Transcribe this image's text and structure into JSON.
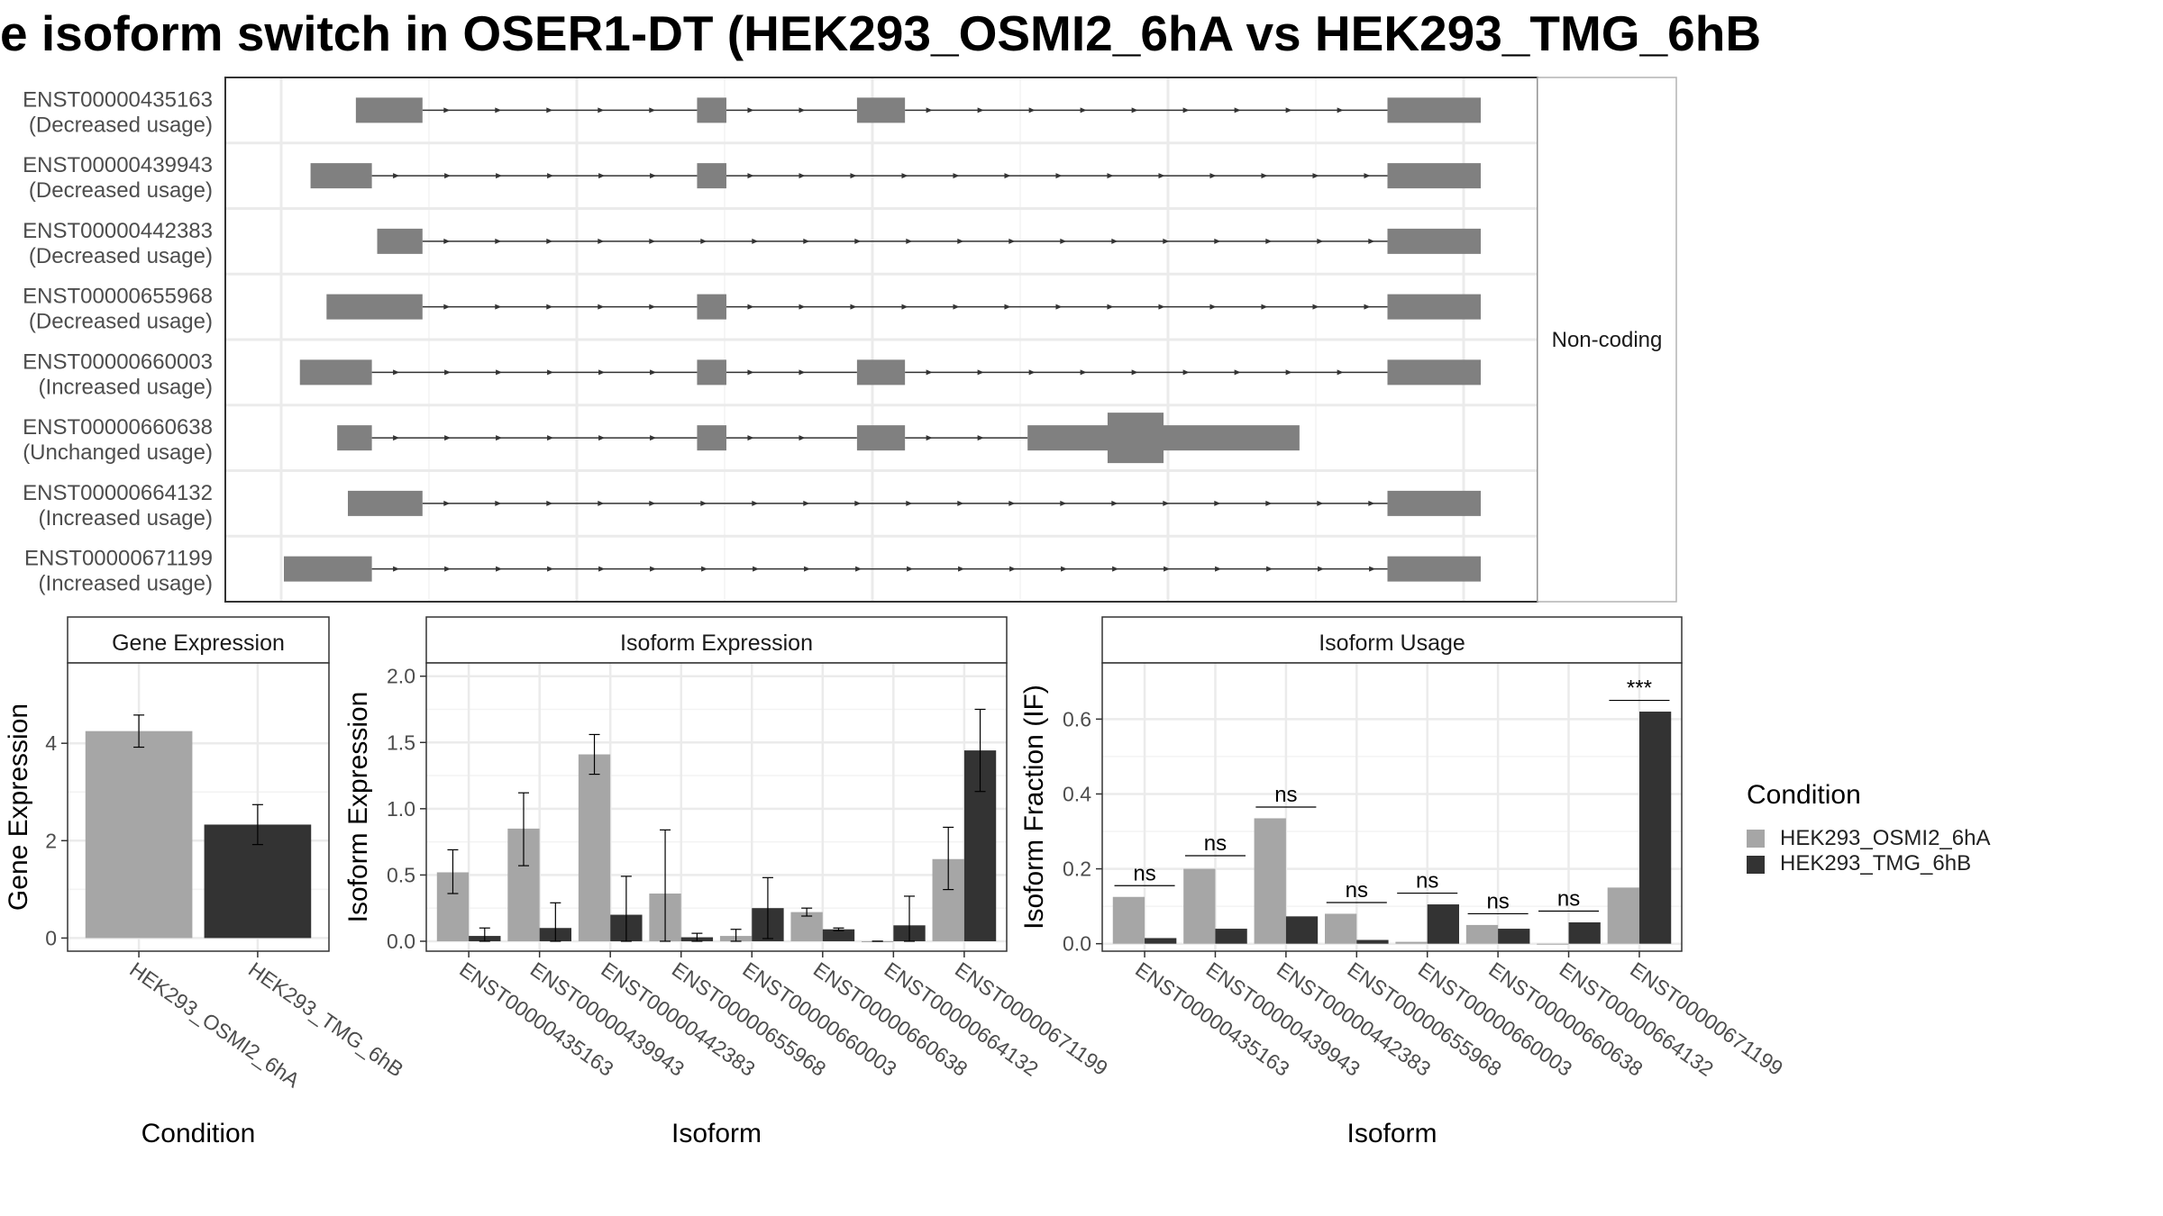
{
  "title": "e isoform switch in OSER1-DT (HEK293_OSMI2_6hA vs HEK293_TMG_6hB",
  "colors": {
    "cond_a": "#a6a6a6",
    "cond_b": "#333333",
    "exon": "#808080",
    "grid": "#ebebeb"
  },
  "structure": {
    "strip_label": "Non-coding",
    "isoforms": [
      {
        "id": "ENST00000435163",
        "usage": "(Decreased usage)",
        "exons": [
          [
            1.97,
            2.22
          ],
          [
            3.25,
            3.36
          ],
          [
            3.85,
            4.03
          ],
          [
            5.84,
            6.19
          ]
        ],
        "cds": []
      },
      {
        "id": "ENST00000439943",
        "usage": "(Decreased usage)",
        "exons": [
          [
            1.8,
            2.03
          ],
          [
            3.25,
            3.36
          ],
          [
            5.84,
            6.19
          ]
        ],
        "cds": []
      },
      {
        "id": "ENST00000442383",
        "usage": "(Decreased usage)",
        "exons": [
          [
            2.05,
            2.22
          ],
          [
            5.84,
            6.19
          ]
        ],
        "cds": []
      },
      {
        "id": "ENST00000655968",
        "usage": "(Decreased usage)",
        "exons": [
          [
            1.86,
            2.22
          ],
          [
            3.25,
            3.36
          ],
          [
            5.84,
            6.19
          ]
        ],
        "cds": []
      },
      {
        "id": "ENST00000660003",
        "usage": "(Increased usage)",
        "exons": [
          [
            1.76,
            2.03
          ],
          [
            3.25,
            3.36
          ],
          [
            3.85,
            4.03
          ],
          [
            5.84,
            6.19
          ]
        ],
        "cds": []
      },
      {
        "id": "ENST00000660638",
        "usage": "(Unchanged usage)",
        "exons": [
          [
            1.9,
            2.03
          ],
          [
            3.25,
            3.36
          ],
          [
            3.85,
            4.03
          ],
          [
            4.49,
            5.51
          ]
        ],
        "cds": [
          [
            4.79,
            5.0
          ]
        ]
      },
      {
        "id": "ENST00000664132",
        "usage": "(Increased usage)",
        "exons": [
          [
            1.94,
            2.22
          ],
          [
            5.84,
            6.19
          ]
        ],
        "cds": []
      },
      {
        "id": "ENST00000671199",
        "usage": "(Increased usage)",
        "exons": [
          [
            1.7,
            2.03
          ],
          [
            5.84,
            6.19
          ]
        ],
        "cds": []
      }
    ]
  },
  "chart_data": [
    {
      "type": "bar",
      "panel": "Gene Expression",
      "categories": [
        "HEK293_OSMI2_6hA",
        "HEK293_TMG_6hB"
      ],
      "values": [
        4.25,
        2.33
      ],
      "errors": [
        [
          3.92,
          4.58
        ],
        [
          1.92,
          2.74
        ]
      ],
      "xlabel": "Condition",
      "ylabel": "Gene Expression",
      "ylim": [
        -0.27,
        5.65
      ],
      "yticks": [
        0,
        2,
        4
      ]
    },
    {
      "type": "bar",
      "panel": "Isoform Expression",
      "categories": [
        "ENST00000435163",
        "ENST00000439943",
        "ENST00000442383",
        "ENST00000655968",
        "ENST00000660003",
        "ENST00000660638",
        "ENST00000664132",
        "ENST00000671199"
      ],
      "series": [
        {
          "name": "HEK293_OSMI2_6hA",
          "values": [
            0.52,
            0.85,
            1.41,
            0.36,
            0.04,
            0.22,
            0.0,
            0.62
          ],
          "errors": [
            [
              0.36,
              0.69
            ],
            [
              0.57,
              1.12
            ],
            [
              1.26,
              1.56
            ],
            [
              0.0,
              0.84
            ],
            [
              0.0,
              0.09
            ],
            [
              0.19,
              0.25
            ],
            [
              0.0,
              0.0
            ],
            [
              0.39,
              0.86
            ]
          ]
        },
        {
          "name": "HEK293_TMG_6hB",
          "values": [
            0.04,
            0.1,
            0.2,
            0.03,
            0.25,
            0.09,
            0.12,
            1.44
          ],
          "errors": [
            [
              0.0,
              0.1
            ],
            [
              0.0,
              0.29
            ],
            [
              0.0,
              0.49
            ],
            [
              0.0,
              0.06
            ],
            [
              0.02,
              0.48
            ],
            [
              0.08,
              0.1
            ],
            [
              0.0,
              0.34
            ],
            [
              1.13,
              1.75
            ]
          ]
        }
      ],
      "xlabel": "Isoform",
      "ylabel": "Isoform Expression",
      "ylim": [
        -0.075,
        2.1
      ],
      "yticks": [
        "0.0",
        "0.5",
        "1.0",
        "1.5",
        "2.0"
      ]
    },
    {
      "type": "bar",
      "panel": "Isoform Usage",
      "categories": [
        "ENST00000435163",
        "ENST00000439943",
        "ENST00000442383",
        "ENST00000655968",
        "ENST00000660003",
        "ENST00000660638",
        "ENST00000664132",
        "ENST00000671199"
      ],
      "series": [
        {
          "name": "HEK293_OSMI2_6hA",
          "values": [
            0.125,
            0.2,
            0.335,
            0.08,
            0.005,
            0.05,
            0.0,
            0.15
          ]
        },
        {
          "name": "HEK293_TMG_6hB",
          "values": [
            0.015,
            0.04,
            0.073,
            0.01,
            0.105,
            0.04,
            0.057,
            0.62
          ]
        }
      ],
      "significance": [
        "ns",
        "ns",
        "ns",
        "ns",
        "ns",
        "ns",
        "ns",
        "***"
      ],
      "sig_level": [
        0.155,
        0.235,
        0.365,
        0.11,
        0.135,
        0.08,
        0.087,
        0.65
      ],
      "xlabel": "Isoform",
      "ylabel": "Isoform Fraction (IF)",
      "ylim": [
        -0.02,
        0.75
      ],
      "yticks": [
        "0.0",
        "0.2",
        "0.4",
        "0.6"
      ]
    }
  ],
  "legend": {
    "title": "Condition",
    "entries": [
      "HEK293_OSMI2_6hA",
      "HEK293_TMG_6hB"
    ]
  }
}
